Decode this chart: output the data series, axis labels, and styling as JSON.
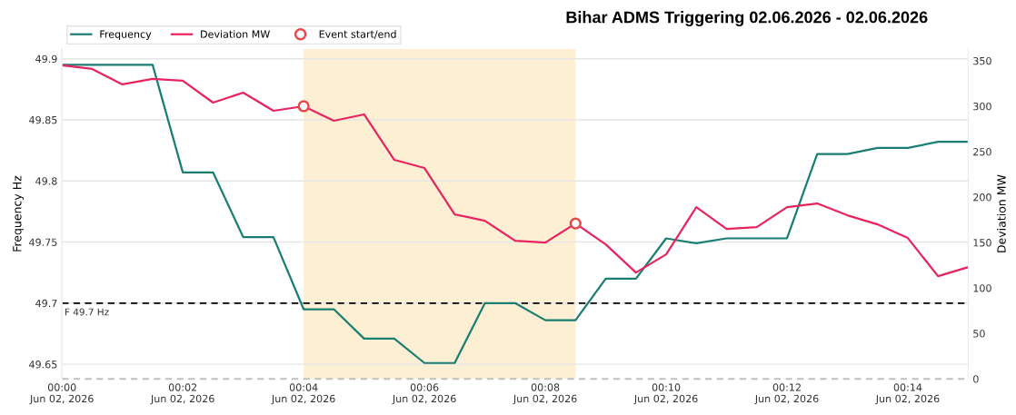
{
  "chart_data": {
    "type": "line",
    "title": "Bihar ADMS Triggering 02.06.2026 - 02.06.2026",
    "ylabel": "Frequency Hz",
    "y2label": "Deviation MW",
    "x": [
      "2026-06-02T00:00:00",
      "2026-06-02T00:00:30",
      "2026-06-02T00:01:00",
      "2026-06-02T00:01:30",
      "2026-06-02T00:02:00",
      "2026-06-02T00:02:30",
      "2026-06-02T00:03:00",
      "2026-06-02T00:03:30",
      "2026-06-02T00:04:00",
      "2026-06-02T00:04:30",
      "2026-06-02T00:05:00",
      "2026-06-02T00:05:30",
      "2026-06-02T00:06:00",
      "2026-06-02T00:06:30",
      "2026-06-02T00:07:00",
      "2026-06-02T00:07:30",
      "2026-06-02T00:08:00",
      "2026-06-02T00:08:30",
      "2026-06-02T00:09:00",
      "2026-06-02T00:09:30",
      "2026-06-02T00:10:00",
      "2026-06-02T00:10:30",
      "2026-06-02T00:11:00",
      "2026-06-02T00:11:30",
      "2026-06-02T00:12:00",
      "2026-06-02T00:12:30",
      "2026-06-02T00:13:00",
      "2026-06-02T00:13:30",
      "2026-06-02T00:14:00",
      "2026-06-02T00:14:30",
      "2026-06-02T00:15:00"
    ],
    "series": [
      {
        "name": "Frequency",
        "color": "#1a7f72",
        "values": [
          49.895,
          49.895,
          49.895,
          49.895,
          49.807,
          49.807,
          49.754,
          49.754,
          49.695,
          49.695,
          49.671,
          49.671,
          49.651,
          49.651,
          49.7,
          49.7,
          49.686,
          49.686,
          49.72,
          49.72,
          49.753,
          49.749,
          49.753,
          49.753,
          49.753,
          49.822,
          49.822,
          49.827,
          49.827,
          49.832,
          49.832
        ]
      },
      {
        "name": "Deviation MW",
        "color": "#e8245e",
        "axis": "y2",
        "values": [
          345,
          341,
          324,
          330,
          328,
          304,
          315,
          295,
          300,
          284,
          291,
          241,
          232,
          181,
          174,
          152,
          150,
          171,
          148,
          117,
          137,
          189,
          165,
          167,
          189,
          193,
          180,
          170,
          155,
          113,
          123
        ]
      },
      {
        "name": "Event start/end",
        "type": "scatter",
        "marker": "circle",
        "color": "#e84a4a",
        "axis": "y2",
        "x": [
          "2026-06-02T00:04:00",
          "2026-06-02T00:08:30"
        ],
        "values": [
          300,
          171
        ]
      }
    ],
    "xlim": [
      "2026-06-02T00:00",
      "2026-06-02T00:15"
    ],
    "xticks": [
      {
        "value": "2026-06-02T00:00",
        "label": "00:00\nJun 02, 2026"
      },
      {
        "value": "2026-06-02T00:02",
        "label": "00:02\nJun 02, 2026"
      },
      {
        "value": "2026-06-02T00:04",
        "label": "00:04\nJun 02, 2026"
      },
      {
        "value": "2026-06-02T00:06",
        "label": "00:06\nJun 02, 2026"
      },
      {
        "value": "2026-06-02T00:08",
        "label": "00:08\nJun 02, 2026"
      },
      {
        "value": "2026-06-02T00:10",
        "label": "00:10\nJun 02, 2026"
      },
      {
        "value": "2026-06-02T00:12",
        "label": "00:12\nJun 02, 2026"
      },
      {
        "value": "2026-06-02T00:14",
        "label": "00:14\nJun 02, 2026"
      }
    ],
    "ylim": [
      49.638,
      49.908
    ],
    "yticks": [
      49.65,
      49.7,
      49.75,
      49.8,
      49.85,
      49.9
    ],
    "y2lim": [
      0,
      363
    ],
    "y2ticks": [
      0,
      50,
      100,
      150,
      200,
      250,
      300,
      350
    ],
    "ref_lines": [
      {
        "axis": "y",
        "value": 49.7,
        "label": "F 49.7 Hz",
        "color": "#000000",
        "line_style": "dashed"
      },
      {
        "axis": "y2",
        "value": 0,
        "color": "#c0c0c0",
        "line_style": "dashed"
      }
    ],
    "bands": [
      {
        "axis": "x",
        "from": "2026-06-02T00:04",
        "to": "2026-06-02T00:08:30",
        "color": "#fdefd3"
      }
    ],
    "grid": "y",
    "legend": "top left"
  }
}
